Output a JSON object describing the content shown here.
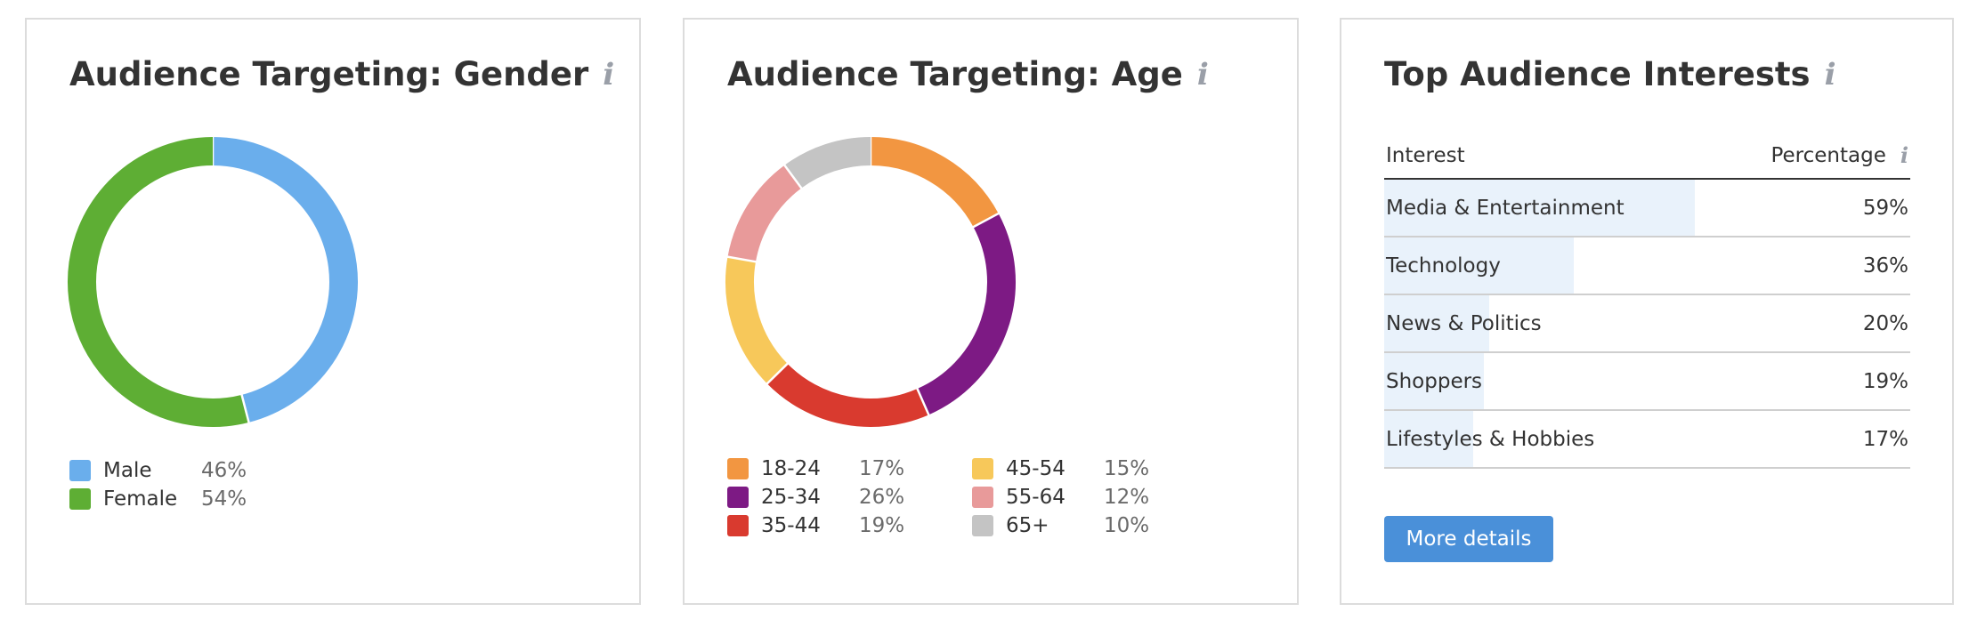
{
  "gender": {
    "title": "Audience Targeting: Gender",
    "info_icon": "i",
    "chart_data": {
      "type": "pie",
      "title": "Audience Targeting: Gender",
      "categories": [
        "Male",
        "Female"
      ],
      "values": [
        46,
        54
      ],
      "value_labels": [
        "46%",
        "54%"
      ],
      "colors": [
        "#6aaeec",
        "#5eae34"
      ]
    }
  },
  "age": {
    "title": "Audience Targeting: Age",
    "info_icon": "i",
    "chart_data": {
      "type": "pie",
      "title": "Audience Targeting: Age",
      "categories": [
        "18-24",
        "25-34",
        "35-44",
        "45-54",
        "55-64",
        "65+"
      ],
      "values": [
        17,
        26,
        19,
        15,
        12,
        10
      ],
      "value_labels": [
        "17%",
        "26%",
        "19%",
        "15%",
        "12%",
        "10%"
      ],
      "colors": [
        "#f29641",
        "#7d1a84",
        "#d93a2f",
        "#f7c85a",
        "#e89a9a",
        "#c4c4c4"
      ]
    }
  },
  "interests": {
    "title": "Top Audience Interests",
    "info_icon": "i",
    "header": {
      "interest": "Interest",
      "percentage": "Percentage"
    },
    "rows": [
      {
        "label": "Media & Entertainment",
        "value": "59%",
        "pct": 59
      },
      {
        "label": "Technology",
        "value": "36%",
        "pct": 36
      },
      {
        "label": "News & Politics",
        "value": "20%",
        "pct": 20
      },
      {
        "label": "Shoppers",
        "value": "19%",
        "pct": 19
      },
      {
        "label": "Lifestyles & Hobbies",
        "value": "17%",
        "pct": 17
      }
    ],
    "button_label": "More details",
    "bar_color": "#e9f2fb"
  }
}
